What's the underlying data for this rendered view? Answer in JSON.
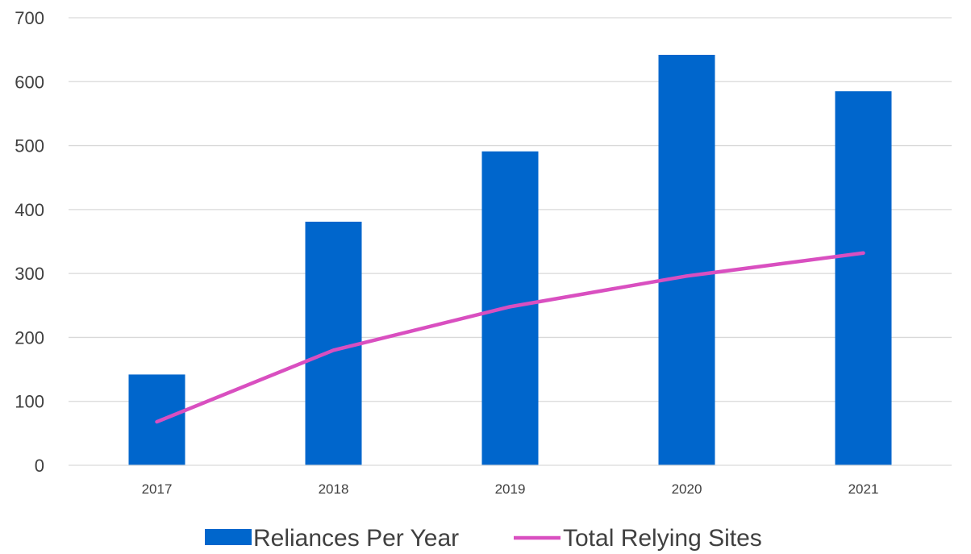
{
  "chart_data": {
    "type": "bar",
    "categories": [
      "2017",
      "2018",
      "2019",
      "2020",
      "2021"
    ],
    "series": [
      {
        "name": "Reliances Per Year",
        "type": "bar",
        "color": "#0066CC",
        "values": [
          142,
          381,
          491,
          642,
          585
        ]
      },
      {
        "name": "Total Relying Sites",
        "type": "line",
        "color": "#D94FC0",
        "values": [
          68,
          180,
          248,
          296,
          332
        ]
      }
    ],
    "ylim": [
      0,
      700
    ],
    "yticks": [
      "0",
      "100",
      "200",
      "300",
      "400",
      "500",
      "600",
      "700"
    ],
    "grid": true,
    "legend": "bottom"
  }
}
